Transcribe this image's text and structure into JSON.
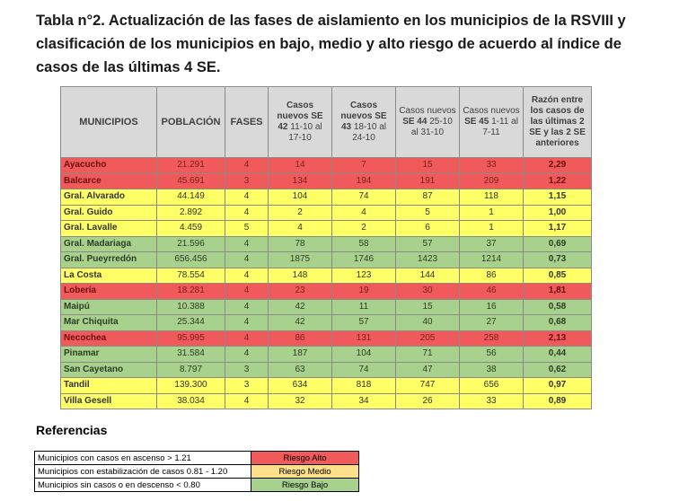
{
  "title": "Tabla n°2. Actualización de las fases de aislamiento en los municipios de la RSVIII y clasificación de los municipios en bajo, medio y alto riesgo de acuerdo al índice de casos de las últimas 4 SE.",
  "headers": {
    "municipios": "MUNICIPIOS",
    "poblacion": "POBLACIÓN",
    "fases": "FASES",
    "se42_a": "Casos nuevos",
    "se42_b": "SE 42",
    "se42_c": "11-10 al 17-10",
    "se43_a": "Casos nuevos",
    "se43_b": "SE 43",
    "se43_c": "18-10 al 24-10",
    "se44_a": "Casos nuevos",
    "se44_b": "SE 44",
    "se44_c": "25-10 al 31-10",
    "se45_a": "Casos nuevos",
    "se45_b": "SE 45",
    "se45_c": "1-11 al 7-11",
    "razon": "Razón entre los casos de las últimas 2 SE y las 2 SE anteriores"
  },
  "rows": [
    {
      "municipio": "Ayacucho",
      "poblacion": "21.291",
      "fase": "4",
      "se42": "14",
      "se43": "7",
      "se44": "15",
      "se45": "33",
      "razon": "2,29",
      "riesgo": "alto"
    },
    {
      "municipio": "Balcarce",
      "poblacion": "45.691",
      "fase": "3",
      "se42": "134",
      "se43": "194",
      "se44": "191",
      "se45": "209",
      "razon": "1,22",
      "riesgo": "alto"
    },
    {
      "municipio": "Gral. Alvarado",
      "poblacion": "44.149",
      "fase": "4",
      "se42": "104",
      "se43": "74",
      "se44": "87",
      "se45": "118",
      "razon": "1,15",
      "riesgo": "medio"
    },
    {
      "municipio": "Gral. Guido",
      "poblacion": "2.892",
      "fase": "4",
      "se42": "2",
      "se43": "4",
      "se44": "5",
      "se45": "1",
      "razon": "1,00",
      "riesgo": "medio"
    },
    {
      "municipio": "Gral. Lavalle",
      "poblacion": "4.459",
      "fase": "5",
      "se42": "4",
      "se43": "2",
      "se44": "6",
      "se45": "1",
      "razon": "1,17",
      "riesgo": "medio"
    },
    {
      "municipio": "Gral. Madariaga",
      "poblacion": "21.596",
      "fase": "4",
      "se42": "78",
      "se43": "58",
      "se44": "57",
      "se45": "37",
      "razon": "0,69",
      "riesgo": "bajo"
    },
    {
      "municipio": "Gral. Pueyrredón",
      "poblacion": "656.456",
      "fase": "4",
      "se42": "1875",
      "se43": "1746",
      "se44": "1423",
      "se45": "1214",
      "razon": "0,73",
      "riesgo": "bajo"
    },
    {
      "municipio": "La Costa",
      "poblacion": "78.554",
      "fase": "4",
      "se42": "148",
      "se43": "123",
      "se44": "144",
      "se45": "86",
      "razon": "0,85",
      "riesgo": "medio"
    },
    {
      "municipio": "Lobería",
      "poblacion": "18.281",
      "fase": "4",
      "se42": "23",
      "se43": "19",
      "se44": "30",
      "se45": "46",
      "razon": "1,81",
      "riesgo": "alto"
    },
    {
      "municipio": "Maipú",
      "poblacion": "10.388",
      "fase": "4",
      "se42": "42",
      "se43": "11",
      "se44": "15",
      "se45": "16",
      "razon": "0,58",
      "riesgo": "bajo"
    },
    {
      "municipio": "Mar Chiquita",
      "poblacion": "25.344",
      "fase": "4",
      "se42": "42",
      "se43": "57",
      "se44": "40",
      "se45": "27",
      "razon": "0,68",
      "riesgo": "bajo"
    },
    {
      "municipio": "Necochea",
      "poblacion": "95.995",
      "fase": "4",
      "se42": "86",
      "se43": "131",
      "se44": "205",
      "se45": "258",
      "razon": "2,13",
      "riesgo": "alto"
    },
    {
      "municipio": "Pinamar",
      "poblacion": "31.584",
      "fase": "4",
      "se42": "187",
      "se43": "104",
      "se44": "71",
      "se45": "56",
      "razon": "0,44",
      "riesgo": "bajo"
    },
    {
      "municipio": "San Cayetano",
      "poblacion": "8.797",
      "fase": "3",
      "se42": "63",
      "se43": "74",
      "se44": "47",
      "se45": "38",
      "razon": "0,62",
      "riesgo": "bajo"
    },
    {
      "municipio": "Tandil",
      "poblacion": "139.300",
      "fase": "3",
      "se42": "634",
      "se43": "818",
      "se44": "747",
      "se45": "656",
      "razon": "0,97",
      "riesgo": "medio"
    },
    {
      "municipio": "Villa Gesell",
      "poblacion": "38.034",
      "fase": "4",
      "se42": "32",
      "se43": "34",
      "se44": "26",
      "se45": "33",
      "razon": "0,89",
      "riesgo": "medio"
    }
  ],
  "referencias": {
    "title": "Referencias",
    "items": [
      {
        "label": "Municipios con casos en ascenso > 1.21",
        "value": "Riesgo Alto",
        "color": "#f05a5a"
      },
      {
        "label": "Municipios con estabilización de casos 0.81 - 1.20",
        "value": "Riesgo Medio",
        "color": "#ffe08a"
      },
      {
        "label": "Municipios sin casos o en descenso < 0.80",
        "value": "Riesgo Bajo",
        "color": "#a9d18e"
      }
    ]
  }
}
